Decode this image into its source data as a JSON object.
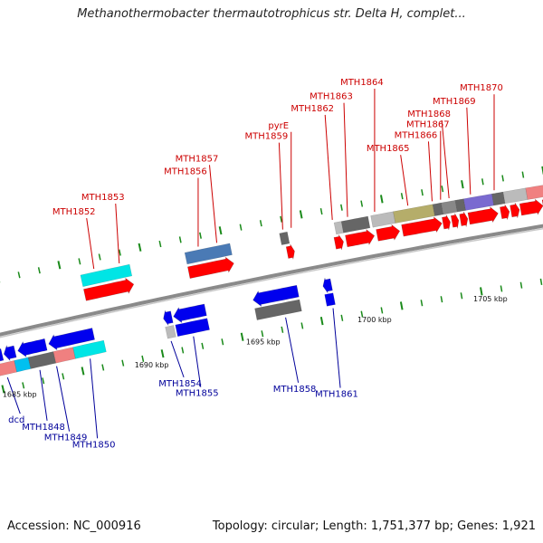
{
  "title": "Methanothermobacter thermautotrophicus str. Delta H, complet...",
  "footer": {
    "accession": "Accession: NC_000916",
    "summary": "Topology: circular; Length: 1,751,377 bp; Genes: 1,921"
  },
  "colors": {
    "forward_label": "#cc0000",
    "reverse_label": "#00009a",
    "backbone": "#8a8a8a",
    "tick": "#1a8a1a"
  },
  "scale_labels": [
    {
      "text": "1685 kbp",
      "pos": 0.025
    },
    {
      "text": "1690 kbp",
      "pos": 0.262
    },
    {
      "text": "1695 kbp",
      "pos": 0.462
    },
    {
      "text": "1700 kbp",
      "pos": 0.662
    },
    {
      "text": "1705 kbp",
      "pos": 0.87
    }
  ],
  "forward_genes": [
    {
      "name": "MTH1852",
      "start": 0.175,
      "end": 0.262,
      "color": "#ff0000",
      "label_anchor": 0.2
    },
    {
      "name": "MTH1853",
      "start": 0.175,
      "end": 0.262,
      "color": "#00e5e5",
      "lane": 2,
      "label_anchor": 0.245
    },
    {
      "name": "MTH1856",
      "start": 0.36,
      "end": 0.44,
      "color": "#ff0000",
      "label_anchor": 0.385
    },
    {
      "name": "MTH1857",
      "start": 0.36,
      "end": 0.44,
      "color": "#4a7ab5",
      "lane": 2,
      "label_anchor": 0.418
    },
    {
      "name": "MTH1859",
      "start": 0.528,
      "end": 0.542,
      "color": "#666666",
      "lane": 2,
      "label_anchor": 0.535
    },
    {
      "name": "pyrE",
      "start": 0.535,
      "end": 0.548,
      "color": "#ff0000",
      "label_anchor": 0.55
    },
    {
      "name": "MTH1862",
      "start": 0.62,
      "end": 0.635,
      "color": "#ff0000",
      "label_anchor": 0.623
    },
    {
      "name": "MTH1863",
      "start": 0.64,
      "end": 0.69,
      "color": "#ff0000",
      "label_anchor": 0.65
    },
    {
      "name": "MTH1864",
      "start": 0.695,
      "end": 0.735,
      "color": "#ff0000",
      "label_anchor": 0.698
    },
    {
      "name": "MTH1865",
      "start": 0.74,
      "end": 0.81,
      "color": "#ff0000",
      "label_anchor": 0.757
    },
    {
      "name": "MTH1866",
      "start": 0.812,
      "end": 0.825,
      "color": "#ff0000",
      "label_anchor": 0.8
    },
    {
      "name": "MTH1867",
      "start": 0.828,
      "end": 0.84,
      "color": "#ff0000",
      "label_anchor": 0.815
    },
    {
      "name": "MTH1868",
      "start": 0.843,
      "end": 0.856,
      "color": "#ff0000",
      "label_anchor": 0.83
    },
    {
      "name": "MTH1869",
      "start": 0.858,
      "end": 0.91,
      "color": "#ff0000",
      "label_anchor": 0.868
    },
    {
      "name": "MTH1870",
      "start": 0.915,
      "end": 0.93,
      "color": "#ff0000",
      "label_anchor": 0.91
    }
  ],
  "reverse_genes": [
    {
      "name": "dcd",
      "start": 0.0,
      "end": 0.012,
      "color": "#0000ee",
      "label_anchor": 0.012
    },
    {
      "name": "MTH1848",
      "start": 0.015,
      "end": 0.035,
      "color": "#0000ee",
      "label_anchor": 0.07
    },
    {
      "name": "MTH1849",
      "start": 0.04,
      "end": 0.09,
      "color": "#0000ee",
      "label_anchor": 0.1
    },
    {
      "name": "MTH1850",
      "start": 0.095,
      "end": 0.175,
      "color": "#0000ee",
      "label_anchor": 0.16
    },
    {
      "name": "MTH1854",
      "start": 0.3,
      "end": 0.315,
      "color": "#0000ee",
      "label_anchor": 0.305
    },
    {
      "name": "MTH1855",
      "start": 0.318,
      "end": 0.375,
      "color": "#0000ee",
      "label_anchor": 0.345
    },
    {
      "name": "MTH1858",
      "start": 0.46,
      "end": 0.54,
      "color": "#0000ee",
      "label_anchor": 0.51
    },
    {
      "name": "MTH1861",
      "start": 0.585,
      "end": 0.6,
      "color": "#0000ee",
      "label_anchor": 0.595
    }
  ],
  "extra_blocks": {
    "fwd_lane2": [
      {
        "start": 0.625,
        "end": 0.638,
        "color": "#bbbbbb"
      },
      {
        "start": 0.638,
        "end": 0.685,
        "color": "#666666"
      },
      {
        "start": 0.69,
        "end": 0.73,
        "color": "#bbbbbb"
      },
      {
        "start": 0.73,
        "end": 0.8,
        "color": "#b5ad6a"
      },
      {
        "start": 0.8,
        "end": 0.815,
        "color": "#666666"
      },
      {
        "start": 0.815,
        "end": 0.84,
        "color": "#888888"
      },
      {
        "start": 0.84,
        "end": 0.855,
        "color": "#666666"
      },
      {
        "start": 0.855,
        "end": 0.905,
        "color": "#7a6ad0"
      },
      {
        "start": 0.905,
        "end": 0.925,
        "color": "#666666"
      },
      {
        "start": 0.925,
        "end": 0.965,
        "color": "#bbbbbb"
      },
      {
        "start": 0.965,
        "end": 1.0,
        "color": "#f08080"
      }
    ],
    "fwd_lane1_tail": [
      {
        "start": 0.933,
        "end": 0.948,
        "color": "#ff0000"
      },
      {
        "start": 0.95,
        "end": 0.99,
        "color": "#ff0000"
      },
      {
        "start": 0.99,
        "end": 1.0,
        "color": "#ff0000"
      }
    ],
    "rev_lane2": [
      {
        "start": 0.0,
        "end": 0.03,
        "color": "#f08080"
      },
      {
        "start": 0.03,
        "end": 0.055,
        "color": "#00c0f0"
      },
      {
        "start": 0.055,
        "end": 0.1,
        "color": "#666666"
      },
      {
        "start": 0.1,
        "end": 0.135,
        "color": "#f08080"
      },
      {
        "start": 0.135,
        "end": 0.19,
        "color": "#00e5e5"
      },
      {
        "start": 0.3,
        "end": 0.315,
        "color": "#bbbbbb"
      },
      {
        "start": 0.318,
        "end": 0.375,
        "color": "#0000ee"
      },
      {
        "start": 0.46,
        "end": 0.54,
        "color": "#666666"
      },
      {
        "start": 0.585,
        "end": 0.6,
        "color": "#0000ee"
      }
    ]
  }
}
